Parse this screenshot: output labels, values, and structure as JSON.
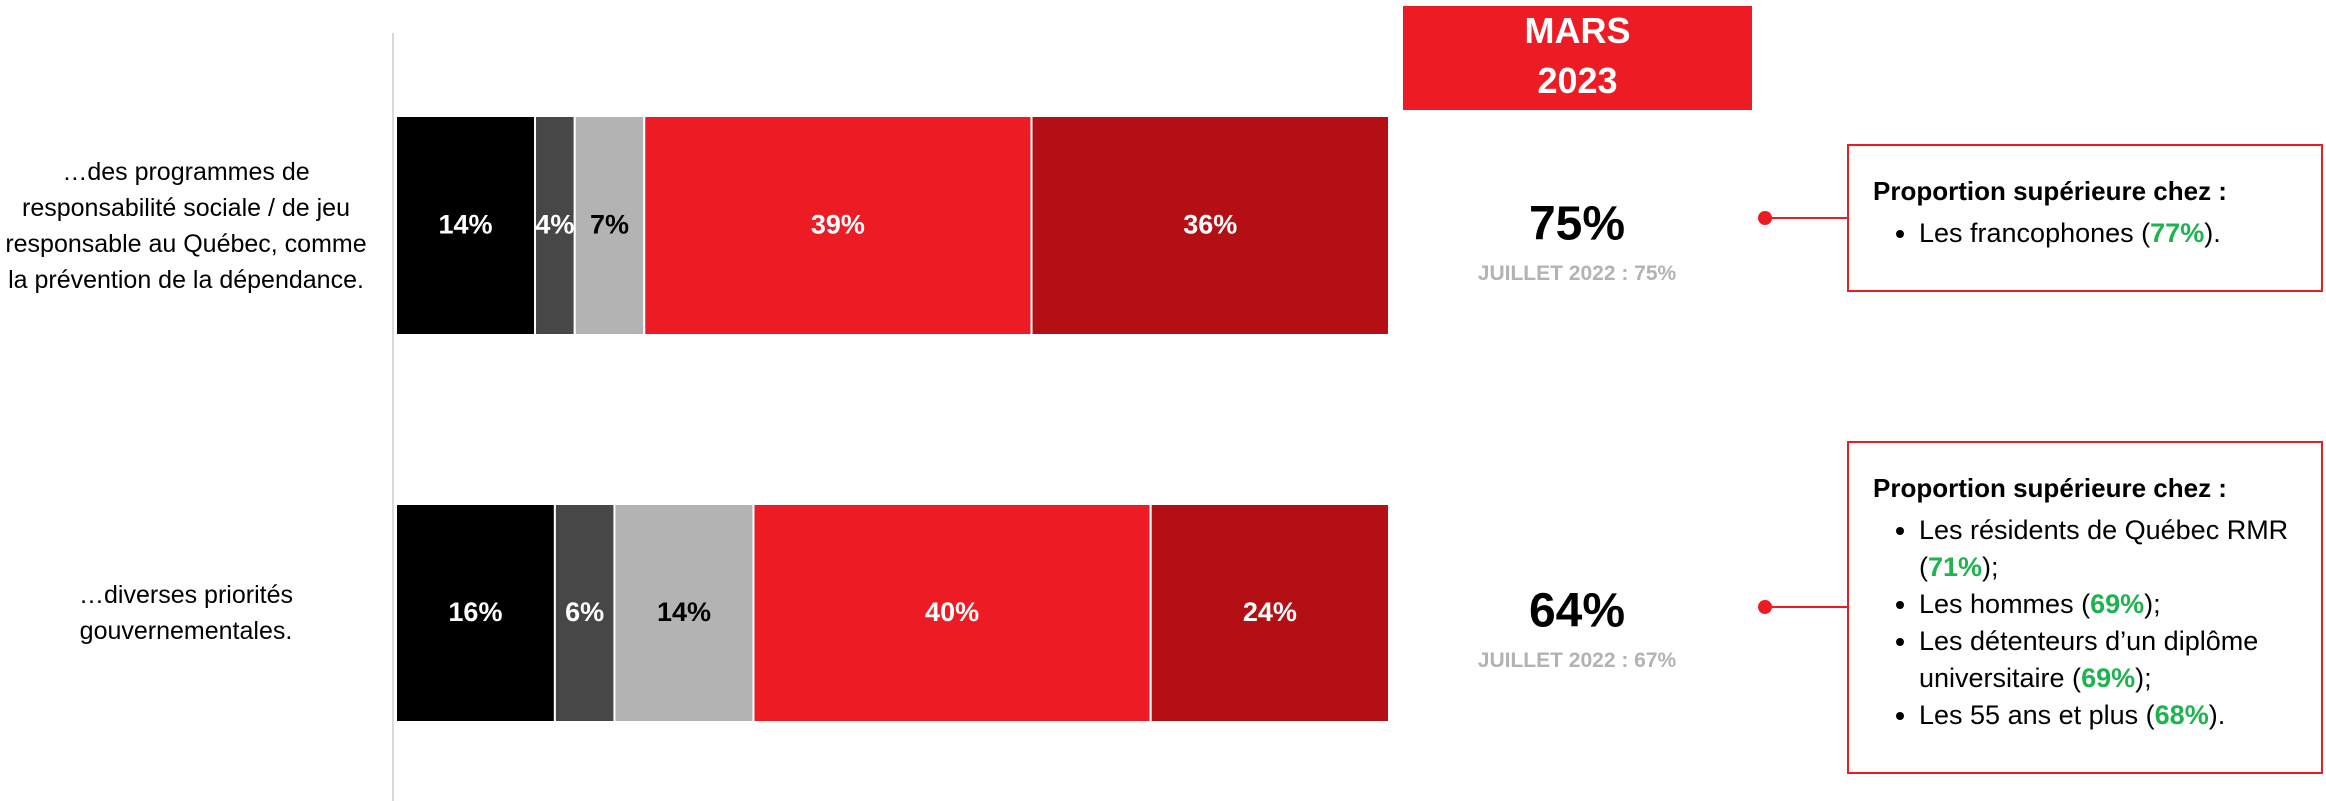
{
  "chart_data": {
    "type": "stacked-bar",
    "orientation": "horizontal",
    "categories": [
      "…des programmes de responsabilité sociale / de jeu responsable au Québec, comme la prévention de la dépendance.",
      "…diverses priorités gouvernementales."
    ],
    "series": [
      {
        "color": "#000000",
        "label_color": "#ffffff",
        "values": [
          14,
          16
        ],
        "value_labels": [
          "14%",
          "16%"
        ]
      },
      {
        "color": "#474747",
        "label_color": "#ffffff",
        "values": [
          4,
          6
        ],
        "value_labels": [
          "4%",
          "6%"
        ]
      },
      {
        "color": "#b3b3b3",
        "label_color": "#000000",
        "values": [
          7,
          14
        ],
        "value_labels": [
          "7%",
          "14%"
        ]
      },
      {
        "color": "#ed1c24",
        "label_color": "#ffffff",
        "values": [
          39,
          40
        ],
        "value_labels": [
          "39%",
          "40%"
        ]
      },
      {
        "color": "#b50f16",
        "label_color": "#ffffff",
        "values": [
          36,
          24
        ],
        "value_labels": [
          "36%",
          "24%"
        ]
      }
    ],
    "xlim": [
      0,
      100
    ],
    "header": [
      "MARS",
      "2023"
    ],
    "totals": {
      "values": [
        75,
        64
      ],
      "value_labels": [
        "75%",
        "64%"
      ]
    },
    "previous": [
      "JUILLET 2022 : 75%",
      "JUILLET 2022 : 67%"
    ],
    "notes": [
      {
        "title": "Proportion supérieure chez :",
        "items": [
          {
            "before": "Les francophones (",
            "highlight": "77%",
            "after": ")."
          }
        ]
      },
      {
        "title": "Proportion supérieure chez :",
        "items": [
          {
            "before": "Les résidents de Québec RMR (",
            "highlight": "71%",
            "after": ");"
          },
          {
            "before": "Les hommes (",
            "highlight": "69%",
            "after": ");"
          },
          {
            "before": "Les détenteurs d’un diplôme universitaire (",
            "highlight": "69%",
            "after": ");"
          },
          {
            "before": "Les 55 ans et plus (",
            "highlight": "68%",
            "after": ")."
          }
        ]
      }
    ]
  }
}
